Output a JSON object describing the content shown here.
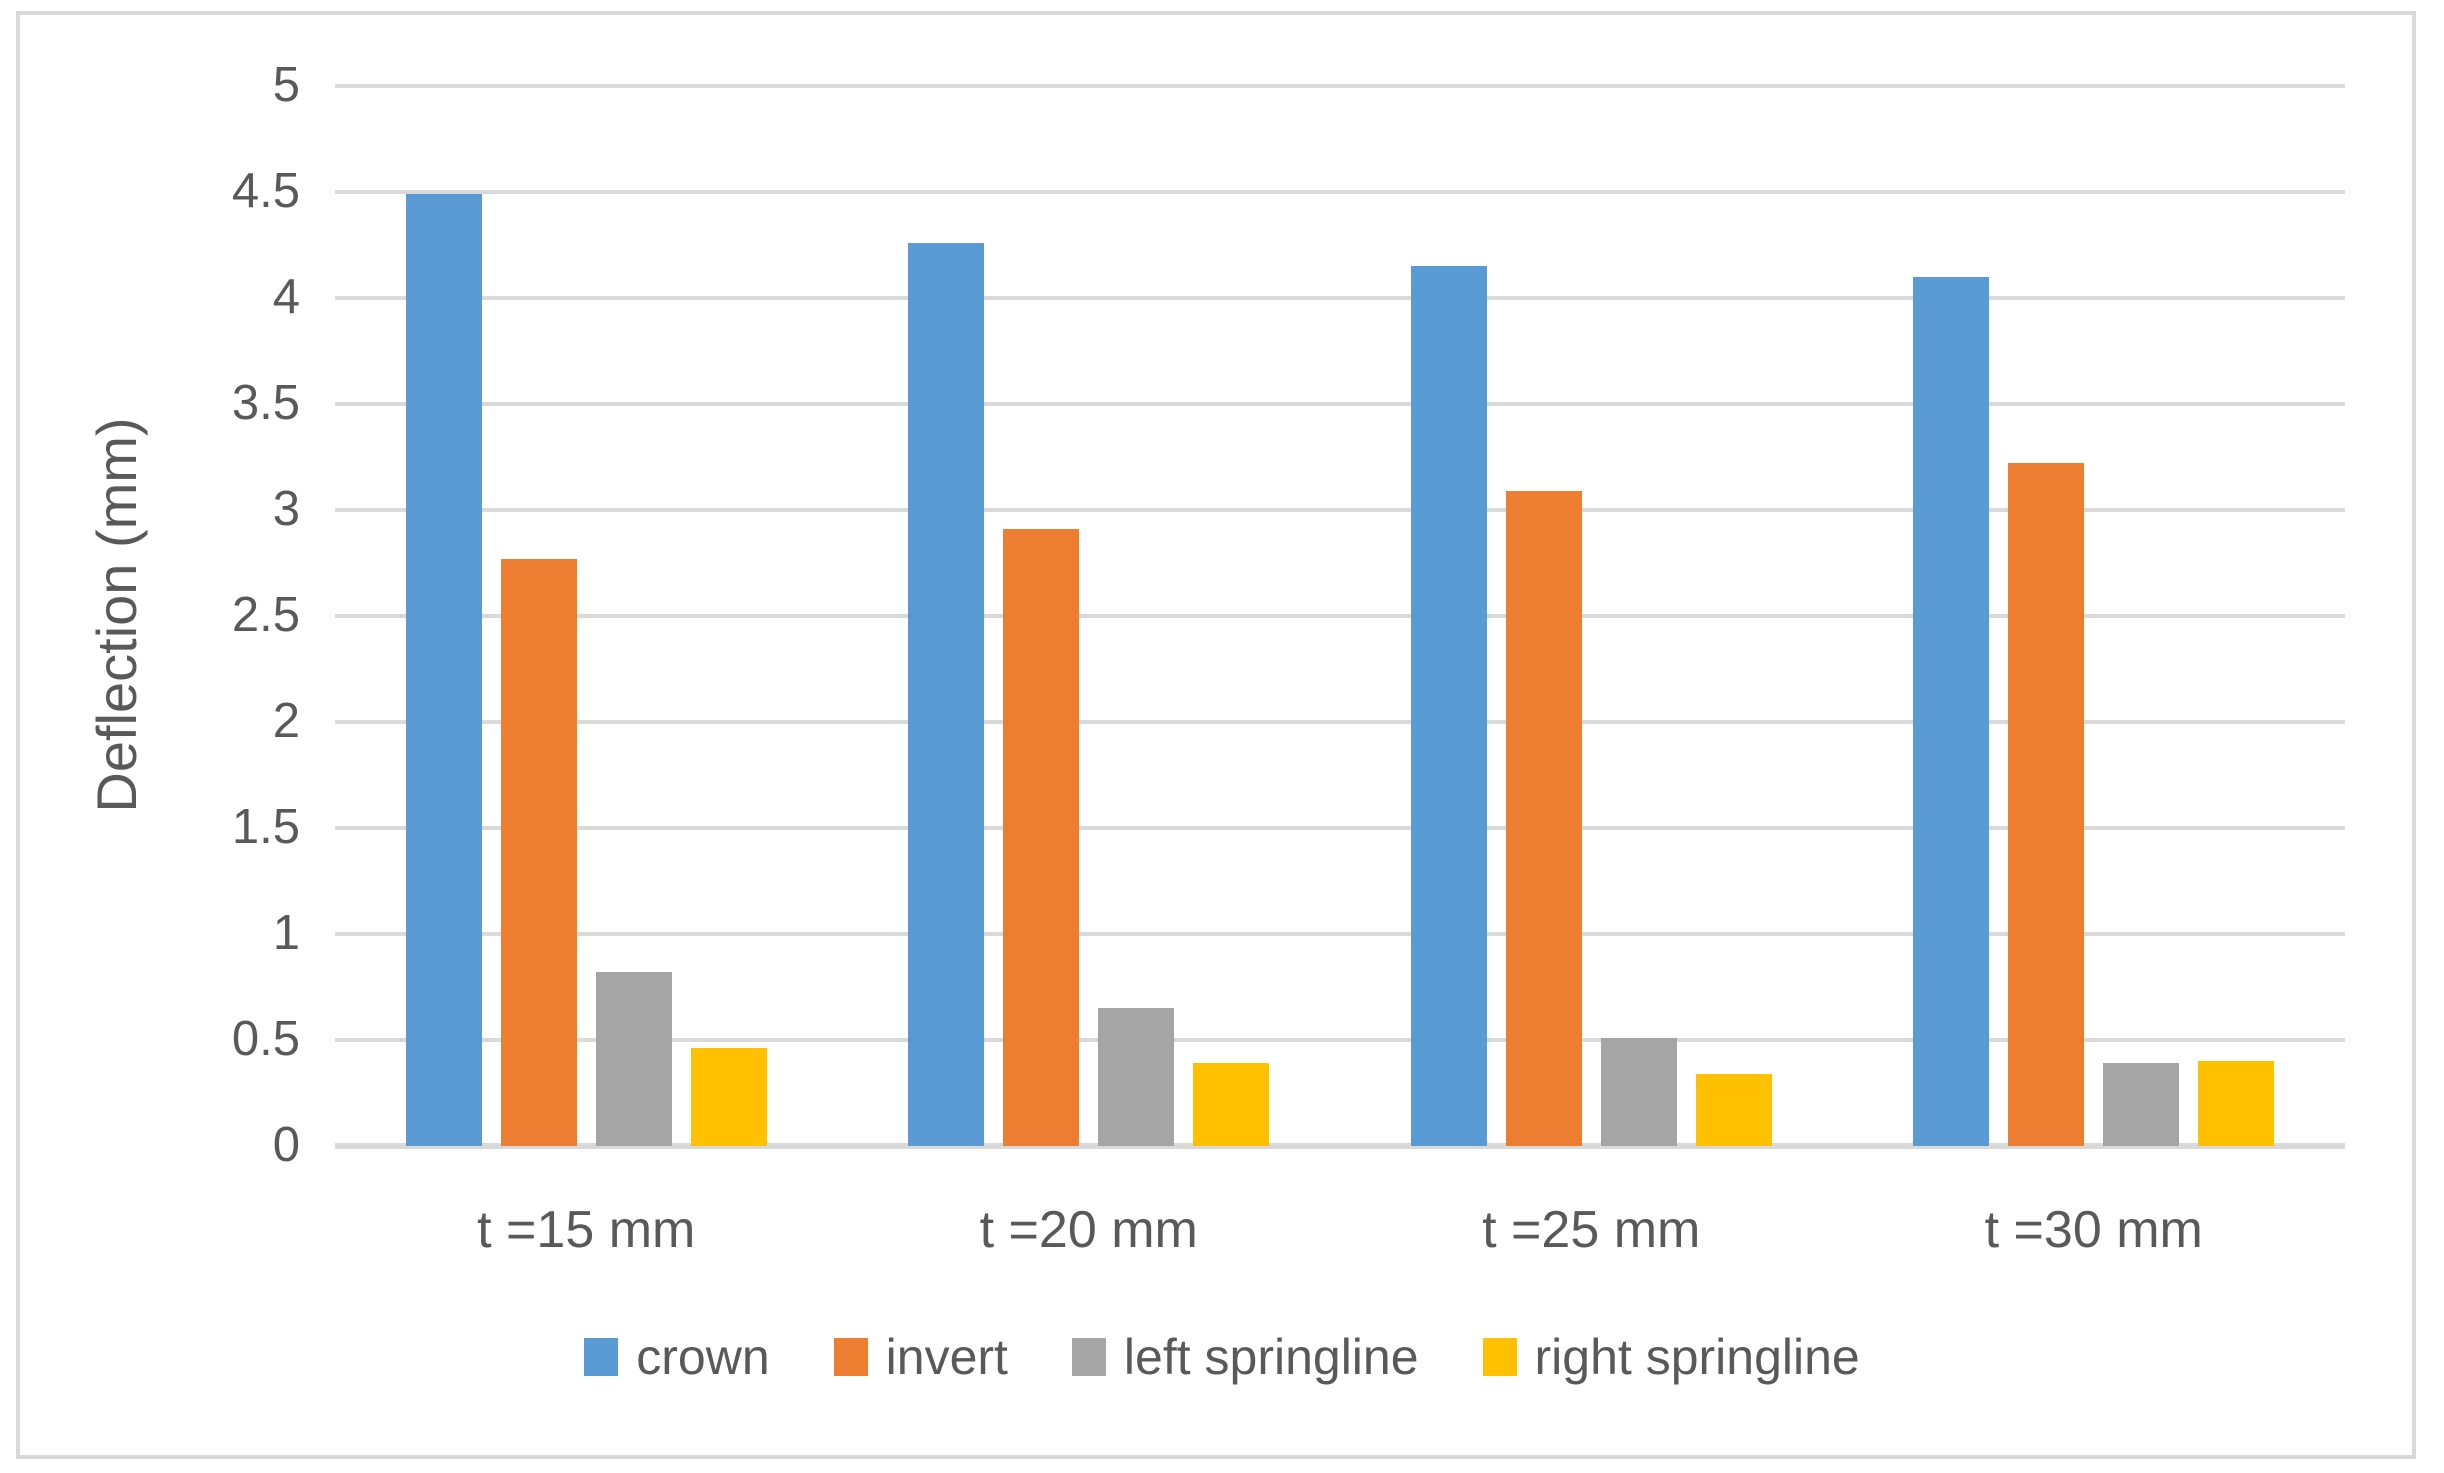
{
  "chart_data": {
    "type": "bar",
    "title": "",
    "xlabel": "",
    "ylabel": "Deflection (mm)",
    "categories": [
      "t =15 mm",
      "t =20 mm",
      "t =25 mm",
      "t =30 mm"
    ],
    "series": [
      {
        "name": "crown",
        "color": "#5B9BD5",
        "values": [
          4.49,
          4.26,
          4.15,
          4.1
        ]
      },
      {
        "name": "invert",
        "color": "#ED7D31",
        "values": [
          2.77,
          2.91,
          3.09,
          3.22
        ]
      },
      {
        "name": "left springline",
        "color": "#A5A5A5",
        "values": [
          0.82,
          0.65,
          0.51,
          0.39
        ]
      },
      {
        "name": "right springline",
        "color": "#FFC000",
        "values": [
          0.46,
          0.39,
          0.34,
          0.4
        ]
      }
    ],
    "ylim": [
      0,
      5
    ],
    "ytick_step": 0.5,
    "ytick_labels": [
      "0",
      "0.5",
      "1",
      "1.5",
      "2",
      "2.5",
      "3",
      "3.5",
      "4",
      "4.5",
      "5"
    ],
    "grid": "horizontal",
    "legend_position": "bottom",
    "gridline_color": "#D9D9D9",
    "axis_line_color": "#D9D9D9",
    "text_color": "#595959",
    "figure_border_color": "#D9D9D9"
  }
}
